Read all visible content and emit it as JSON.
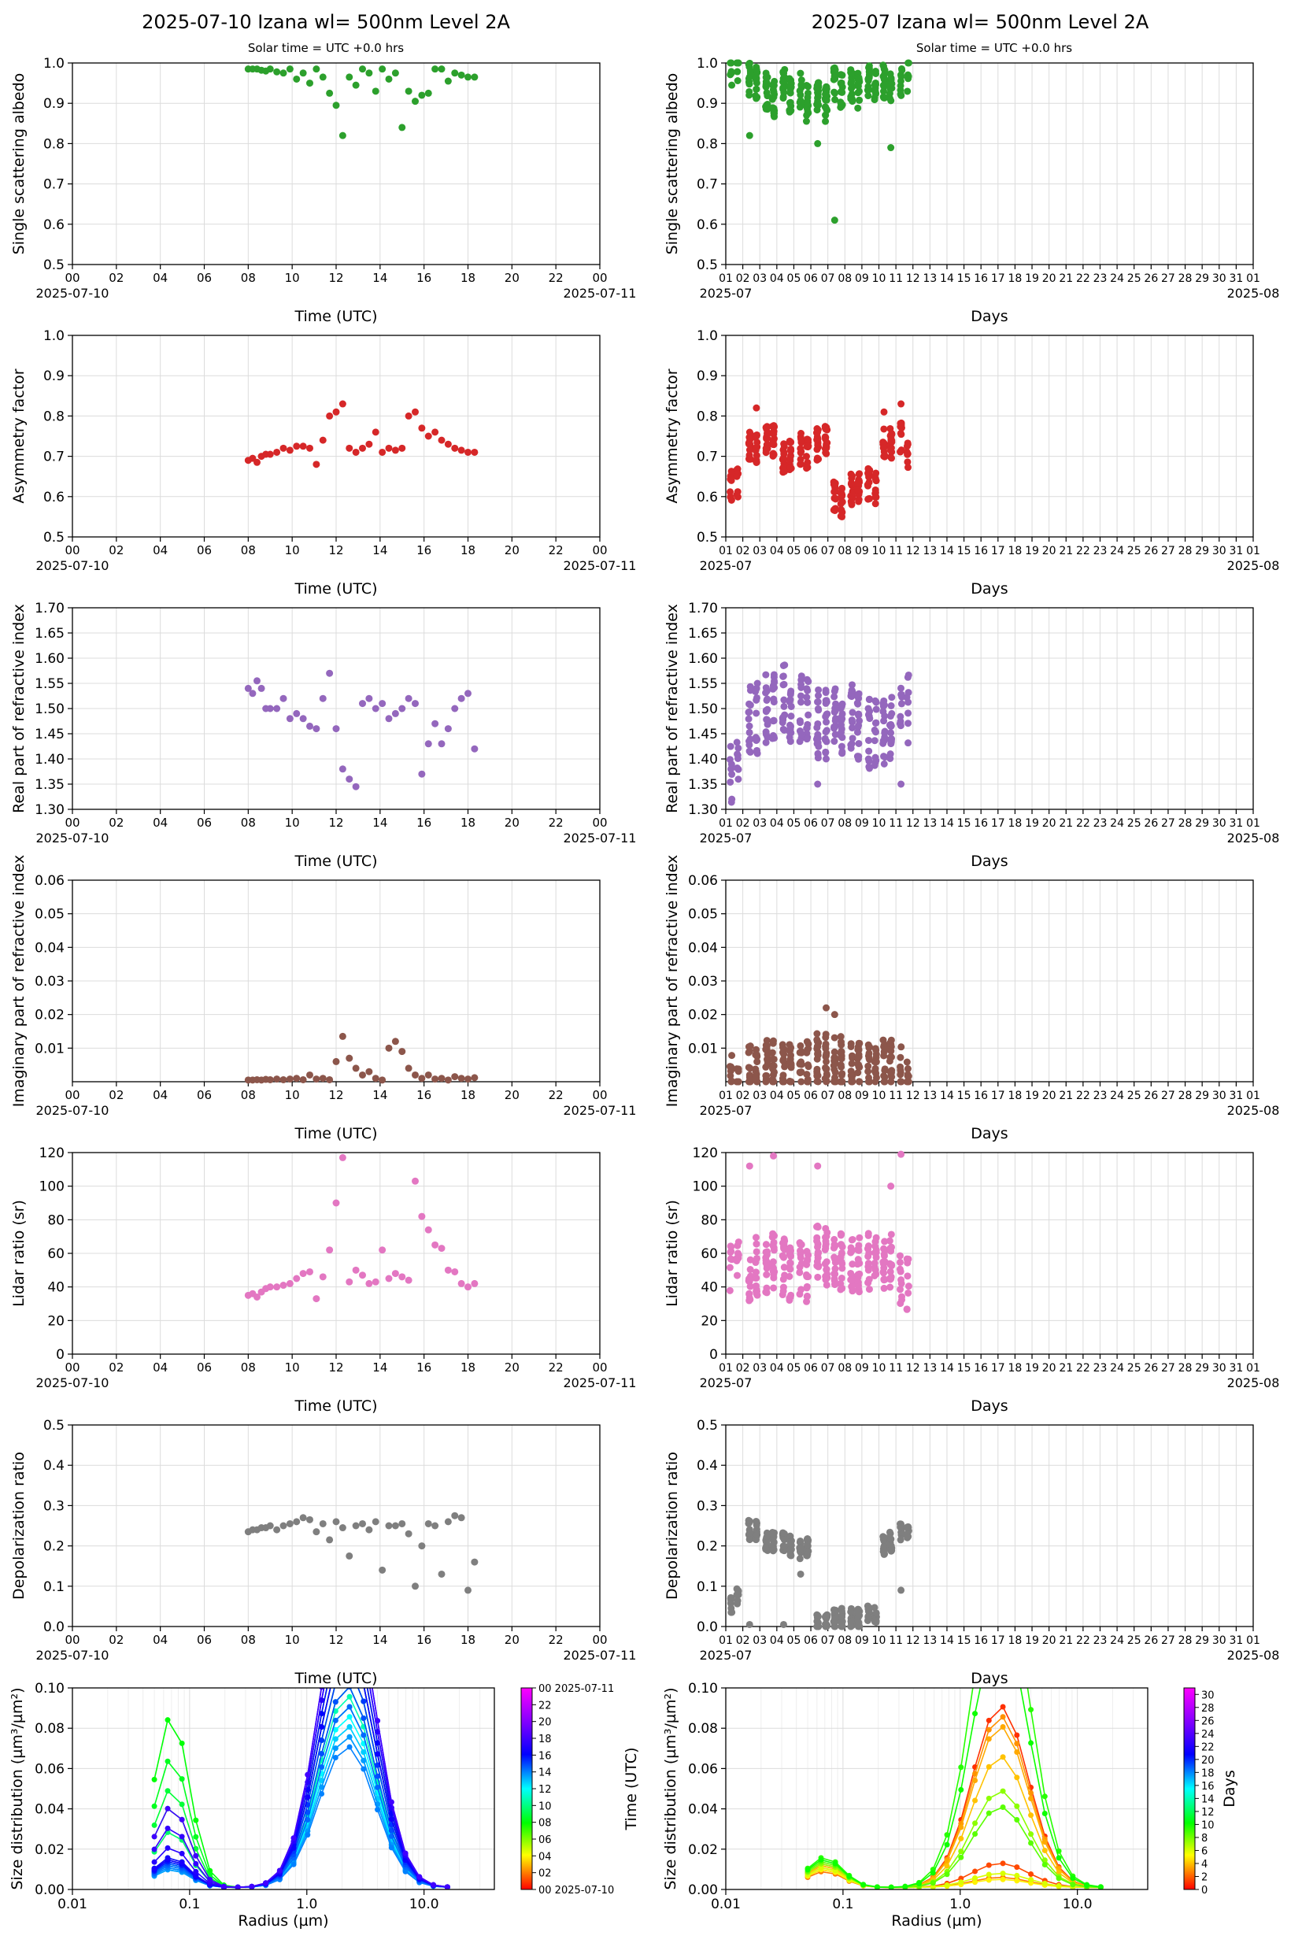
{
  "titles": {
    "left": "2025-07-10  Izana  wl= 500nm  Level 2A",
    "right": "2025-07  Izana  wl= 500nm  Level 2A",
    "subtitle": "Solar time = UTC +0.0 hrs"
  },
  "chart_data": {
    "type": "scatter",
    "daily": {
      "xlabel": "Time (UTC)",
      "xticks": [
        "00",
        "02",
        "04",
        "06",
        "08",
        "10",
        "12",
        "14",
        "16",
        "18",
        "20",
        "22",
        "00"
      ],
      "start_label": "2025-07-10",
      "end_label": "2025-07-11",
      "xlim": [
        0,
        24
      ],
      "hours": [
        8.0,
        8.2,
        8.4,
        8.6,
        8.8,
        9.0,
        9.3,
        9.6,
        9.9,
        10.2,
        10.5,
        10.8,
        11.1,
        11.4,
        11.7,
        12.0,
        12.3,
        12.6,
        12.9,
        13.2,
        13.5,
        13.8,
        14.1,
        14.4,
        14.7,
        15.0,
        15.3,
        15.6,
        15.9,
        16.2,
        16.5,
        16.8,
        17.1,
        17.4,
        17.7,
        18.0,
        18.3
      ]
    },
    "monthly": {
      "xlabel": "Days",
      "xticks": [
        "01",
        "02",
        "03",
        "04",
        "05",
        "06",
        "07",
        "08",
        "09",
        "10",
        "11",
        "12",
        "13",
        "14",
        "15",
        "16",
        "17",
        "18",
        "19",
        "20",
        "21",
        "22",
        "23",
        "24",
        "25",
        "26",
        "27",
        "28",
        "29",
        "30",
        "31",
        "01"
      ],
      "start_label": "2025-07",
      "end_label": "2025-08",
      "xlim": [
        0,
        31
      ],
      "groups": [
        {
          "day": 0.3,
          "n": 8
        },
        {
          "day": 0.7,
          "n": 8
        },
        {
          "day": 1.4,
          "n": 14
        },
        {
          "day": 1.8,
          "n": 14
        },
        {
          "day": 2.4,
          "n": 16
        },
        {
          "day": 2.8,
          "n": 16
        },
        {
          "day": 3.4,
          "n": 16
        },
        {
          "day": 3.8,
          "n": 16
        },
        {
          "day": 4.4,
          "n": 12
        },
        {
          "day": 4.8,
          "n": 14
        },
        {
          "day": 5.4,
          "n": 18
        },
        {
          "day": 5.9,
          "n": 18
        },
        {
          "day": 6.4,
          "n": 16
        },
        {
          "day": 6.8,
          "n": 16
        },
        {
          "day": 7.4,
          "n": 16
        },
        {
          "day": 7.8,
          "n": 16
        },
        {
          "day": 8.4,
          "n": 14
        },
        {
          "day": 8.8,
          "n": 12
        },
        {
          "day": 9.3,
          "n": 16
        },
        {
          "day": 9.7,
          "n": 16
        },
        {
          "day": 10.3,
          "n": 10
        },
        {
          "day": 10.7,
          "n": 8
        }
      ]
    },
    "panels": [
      {
        "key": "ssa",
        "ylabel": "Single scattering albedo",
        "ylim": [
          0.5,
          1.0
        ],
        "yticks": [
          0.5,
          0.6,
          0.7,
          0.8,
          0.9,
          1.0
        ],
        "tickfmt": 1,
        "color": "#2ca02c",
        "daily": [
          0.985,
          0.985,
          0.985,
          0.982,
          0.98,
          0.985,
          0.978,
          0.975,
          0.985,
          0.96,
          0.975,
          0.95,
          0.985,
          0.965,
          0.925,
          0.895,
          0.82,
          0.965,
          0.945,
          0.985,
          0.975,
          0.93,
          0.985,
          0.96,
          0.975,
          0.84,
          0.93,
          0.905,
          0.92,
          0.925,
          0.985,
          0.985,
          0.955,
          0.975,
          0.97,
          0.965,
          0.965
        ],
        "monthly": [
          0.99,
          0.99,
          0.96,
          0.95,
          0.93,
          0.91,
          0.94,
          0.92,
          0.93,
          0.9,
          0.91,
          0.9,
          0.95,
          0.93,
          0.95,
          0.93,
          0.96,
          0.94,
          0.95,
          0.93,
          0.96,
          0.97
        ],
        "mspread": 0.09,
        "outliers": [
          [
            6.4,
            0.61
          ],
          [
            1.4,
            0.82
          ],
          [
            5.4,
            0.8
          ],
          [
            9.7,
            0.79
          ]
        ]
      },
      {
        "key": "asym",
        "ylabel": "Asymmetry factor",
        "ylim": [
          0.5,
          1.0
        ],
        "yticks": [
          0.5,
          0.6,
          0.7,
          0.8,
          0.9,
          1.0
        ],
        "tickfmt": 1,
        "color": "#d62728",
        "daily": [
          0.69,
          0.695,
          0.685,
          0.7,
          0.705,
          0.705,
          0.71,
          0.72,
          0.715,
          0.725,
          0.725,
          0.72,
          0.68,
          0.74,
          0.8,
          0.81,
          0.83,
          0.72,
          0.71,
          0.72,
          0.73,
          0.76,
          0.71,
          0.72,
          0.715,
          0.72,
          0.8,
          0.81,
          0.77,
          0.75,
          0.76,
          0.74,
          0.73,
          0.72,
          0.715,
          0.71,
          0.71
        ],
        "monthly": [
          0.63,
          0.63,
          0.72,
          0.72,
          0.74,
          0.74,
          0.7,
          0.7,
          0.72,
          0.71,
          0.73,
          0.74,
          0.6,
          0.59,
          0.62,
          0.62,
          0.63,
          0.62,
          0.73,
          0.73,
          0.75,
          0.7
        ],
        "mspread": 0.08,
        "outliers": [
          [
            1.8,
            0.82
          ],
          [
            9.3,
            0.81
          ],
          [
            10.3,
            0.83
          ]
        ]
      },
      {
        "key": "nreal",
        "ylabel": "Real part of refractive index",
        "ylim": [
          1.3,
          1.7
        ],
        "yticks": [
          1.3,
          1.35,
          1.4,
          1.45,
          1.5,
          1.55,
          1.6,
          1.65,
          1.7
        ],
        "tickfmt": 2,
        "color": "#9467bd",
        "daily": [
          1.54,
          1.53,
          1.555,
          1.54,
          1.5,
          1.5,
          1.5,
          1.52,
          1.48,
          1.49,
          1.48,
          1.465,
          1.46,
          1.52,
          1.57,
          1.46,
          1.38,
          1.36,
          1.345,
          1.51,
          1.52,
          1.5,
          1.51,
          1.48,
          1.49,
          1.5,
          1.52,
          1.51,
          1.37,
          1.43,
          1.47,
          1.43,
          1.46,
          1.5,
          1.52,
          1.53,
          1.42
        ],
        "monthly": [
          1.37,
          1.38,
          1.48,
          1.48,
          1.5,
          1.5,
          1.52,
          1.5,
          1.5,
          1.49,
          1.47,
          1.47,
          1.48,
          1.46,
          1.48,
          1.46,
          1.45,
          1.45,
          1.46,
          1.47,
          1.48,
          1.5
        ],
        "mspread": 0.14,
        "outliers": [
          [
            5.4,
            1.35
          ],
          [
            10.3,
            1.35
          ]
        ]
      },
      {
        "key": "nimag",
        "ylabel": "Imaginary part of refractive index",
        "ylim": [
          0,
          0.06
        ],
        "yticks": [
          0.01,
          0.02,
          0.03,
          0.04,
          0.05,
          0.06
        ],
        "tickfmt": 2,
        "color": "#8c564b",
        "daily": [
          0.0005,
          0.0005,
          0.0006,
          0.0005,
          0.0007,
          0.0006,
          0.0008,
          0.0006,
          0.0008,
          0.001,
          0.0006,
          0.002,
          0.0008,
          0.001,
          0.0006,
          0.006,
          0.0135,
          0.007,
          0.004,
          0.002,
          0.003,
          0.001,
          0.0005,
          0.01,
          0.012,
          0.009,
          0.004,
          0.002,
          0.001,
          0.002,
          0.0008,
          0.001,
          0.0005,
          0.0015,
          0.001,
          0.0008,
          0.0012
        ],
        "monthly": [
          0.0005,
          0.0005,
          0.004,
          0.004,
          0.005,
          0.005,
          0.004,
          0.004,
          0.004,
          0.005,
          0.007,
          0.007,
          0.006,
          0.006,
          0.005,
          0.005,
          0.004,
          0.004,
          0.005,
          0.005,
          0.003,
          0.002
        ],
        "mspread": 0.015,
        "outliers": [
          [
            5.9,
            0.022
          ],
          [
            6.4,
            0.02
          ]
        ]
      },
      {
        "key": "lidar",
        "ylabel": "Lidar ratio (sr)",
        "ylim": [
          0,
          120
        ],
        "yticks": [
          0,
          20,
          40,
          60,
          80,
          100,
          120
        ],
        "tickfmt": 0,
        "color": "#e377c2",
        "daily": [
          35,
          36,
          34,
          37,
          39,
          40,
          40,
          41,
          42,
          45,
          48,
          49,
          33,
          46,
          62,
          90,
          117,
          43,
          50,
          47,
          42,
          43,
          62,
          45,
          48,
          46,
          44,
          103,
          82,
          74,
          65,
          63,
          50,
          49,
          42,
          40,
          42
        ],
        "monthly": [
          55,
          62,
          48,
          52,
          50,
          55,
          52,
          48,
          50,
          45,
          60,
          58,
          58,
          55,
          52,
          54,
          56,
          55,
          52,
          54,
          45,
          42
        ],
        "mspread": 35,
        "outliers": [
          [
            1.4,
            112
          ],
          [
            2.8,
            118
          ],
          [
            5.4,
            112
          ],
          [
            10.3,
            119
          ],
          [
            9.7,
            100
          ]
        ]
      },
      {
        "key": "depol",
        "ylabel": "Depolarization ratio",
        "ylim": [
          0,
          0.5
        ],
        "yticks": [
          0,
          0.1,
          0.2,
          0.3,
          0.4,
          0.5
        ],
        "tickfmt": 1,
        "color": "#7f7f7f",
        "daily": [
          0.235,
          0.24,
          0.24,
          0.245,
          0.245,
          0.25,
          0.24,
          0.25,
          0.255,
          0.26,
          0.27,
          0.265,
          0.235,
          0.255,
          0.215,
          0.26,
          0.245,
          0.175,
          0.25,
          0.255,
          0.24,
          0.26,
          0.14,
          0.25,
          0.25,
          0.255,
          0.23,
          0.1,
          0.2,
          0.255,
          0.25,
          0.13,
          0.26,
          0.275,
          0.27,
          0.09,
          0.16
        ],
        "monthly": [
          0.05,
          0.08,
          0.24,
          0.24,
          0.21,
          0.21,
          0.21,
          0.2,
          0.19,
          0.2,
          0.005,
          0.005,
          0.02,
          0.02,
          0.02,
          0.02,
          0.03,
          0.03,
          0.2,
          0.21,
          0.24,
          0.24
        ],
        "mspread": 0.05,
        "outliers": [
          [
            1.4,
            0.005
          ],
          [
            3.4,
            0.005
          ],
          [
            4.4,
            0.13
          ],
          [
            10.3,
            0.09
          ]
        ]
      }
    ],
    "size_distribution": {
      "xlabel": "Radius (µm)",
      "ylabel": "Size distribution (µm³/µm²)",
      "xticks": [
        "0.01",
        "0.1",
        "1.0",
        "10.0"
      ],
      "yticks": [
        0.0,
        0.02,
        0.04,
        0.06,
        0.08,
        0.1
      ],
      "ylim": [
        0,
        0.1
      ],
      "radii": [
        0.05,
        0.065,
        0.086,
        0.113,
        0.149,
        0.196,
        0.258,
        0.339,
        0.446,
        0.587,
        0.772,
        1.016,
        1.337,
        1.759,
        2.315,
        3.046,
        4.009,
        5.276,
        6.942,
        9.135,
        12.02,
        15.82
      ],
      "daily_colorbar": {
        "label": "Time (UTC)",
        "ticks": [
          "00 2025-07-10",
          "02",
          "04",
          "06",
          "08",
          "10",
          "12",
          "14",
          "16",
          "18",
          "20",
          "22",
          "00 2025-07-11"
        ]
      },
      "monthly_colorbar": {
        "label": "Days",
        "ticks": [
          "0",
          "2",
          "4",
          "6",
          "8",
          "10",
          "12",
          "14",
          "16",
          "18",
          "20",
          "22",
          "24",
          "26",
          "28",
          "30"
        ]
      },
      "daily_curves": [
        {
          "t": 8.0,
          "fine": 0.085,
          "coarse": 0.13
        },
        {
          "t": 8.4,
          "fine": 0.064,
          "coarse": 0.12
        },
        {
          "t": 8.8,
          "fine": 0.049,
          "coarse": 0.12
        },
        {
          "t": 9.2,
          "fine": 0.04,
          "coarse": 0.11
        },
        {
          "t": 9.6,
          "fine": 0.028,
          "coarse": 0.11
        },
        {
          "t": 10.0,
          "fine": 0.015,
          "coarse": 0.1
        },
        {
          "t": 10.4,
          "fine": 0.012,
          "coarse": 0.1
        },
        {
          "t": 10.8,
          "fine": 0.012,
          "coarse": 0.095
        },
        {
          "t": 11.2,
          "fine": 0.011,
          "coarse": 0.09
        },
        {
          "t": 11.6,
          "fine": 0.01,
          "coarse": 0.09
        },
        {
          "t": 12.0,
          "fine": 0.011,
          "coarse": 0.085
        },
        {
          "t": 12.4,
          "fine": 0.009,
          "coarse": 0.08
        },
        {
          "t": 12.8,
          "fine": 0.012,
          "coarse": 0.08
        },
        {
          "t": 13.2,
          "fine": 0.01,
          "coarse": 0.075
        },
        {
          "t": 13.6,
          "fine": 0.009,
          "coarse": 0.075
        },
        {
          "t": 14.0,
          "fine": 0.01,
          "coarse": 0.07
        },
        {
          "t": 14.4,
          "fine": 0.011,
          "coarse": 0.09
        },
        {
          "t": 14.8,
          "fine": 0.012,
          "coarse": 0.1
        },
        {
          "t": 15.2,
          "fine": 0.013,
          "coarse": 0.11
        },
        {
          "t": 15.6,
          "fine": 0.013,
          "coarse": 0.12
        },
        {
          "t": 16.0,
          "fine": 0.014,
          "coarse": 0.13
        },
        {
          "t": 16.4,
          "fine": 0.014,
          "coarse": 0.12
        },
        {
          "t": 16.8,
          "fine": 0.015,
          "coarse": 0.14
        },
        {
          "t": 17.2,
          "fine": 0.02,
          "coarse": 0.14
        },
        {
          "t": 17.6,
          "fine": 0.03,
          "coarse": 0.15
        },
        {
          "t": 18.0,
          "fine": 0.04,
          "coarse": 0.15
        }
      ],
      "monthly_curves": [
        {
          "d": 1.0,
          "fine": 0.012,
          "coarse": 0.09
        },
        {
          "d": 1.5,
          "fine": 0.011,
          "coarse": 0.012
        },
        {
          "d": 2.5,
          "fine": 0.008,
          "coarse": 0.005
        },
        {
          "d": 3.0,
          "fine": 0.009,
          "coarse": 0.085
        },
        {
          "d": 3.5,
          "fine": 0.01,
          "coarse": 0.08
        },
        {
          "d": 4.0,
          "fine": 0.011,
          "coarse": 0.065
        },
        {
          "d": 5.0,
          "fine": 0.009,
          "coarse": 0.004
        },
        {
          "d": 6.0,
          "fine": 0.01,
          "coarse": 0.007
        },
        {
          "d": 7.5,
          "fine": 0.012,
          "coarse": 0.048
        },
        {
          "d": 8.5,
          "fine": 0.013,
          "coarse": 0.04
        },
        {
          "d": 9.5,
          "fine": 0.015,
          "coarse": 0.16
        },
        {
          "d": 10.0,
          "fine": 0.014,
          "coarse": 0.13
        }
      ]
    }
  }
}
